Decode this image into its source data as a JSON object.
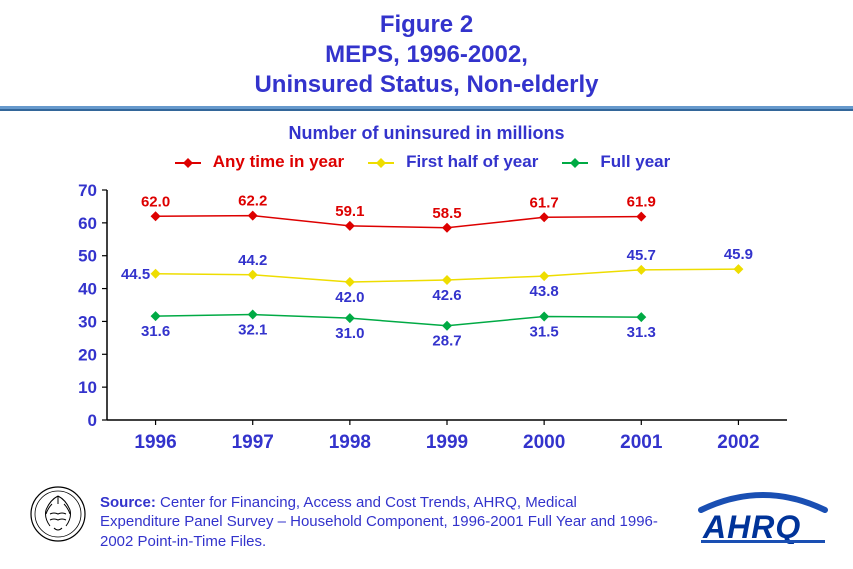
{
  "title": {
    "line1": "Figure 2",
    "line2": "MEPS, 1996-2002,",
    "line3": "Uninsured Status, Non-elderly",
    "color": "#3333cc",
    "fontsize": 24
  },
  "subtitle": {
    "text": "Number of uninsured in millions",
    "color": "#3333cc",
    "fontsize": 18
  },
  "rule_colors": {
    "top": "#6699cc",
    "bottom": "#336699"
  },
  "chart": {
    "type": "line",
    "background_color": "#ffffff",
    "x_categories": [
      "1996",
      "1997",
      "1998",
      "1999",
      "2000",
      "2001",
      "2002"
    ],
    "ylim": [
      0,
      70
    ],
    "ytick_step": 10,
    "axis_color": "#000000",
    "tick_label_color": "#3333cc",
    "tick_fontsize": 17,
    "x_tick_fontsize": 19,
    "data_label_fontsize": 15,
    "marker_style": "diamond",
    "marker_size": 5,
    "line_width": 1.5,
    "series": [
      {
        "name": "Any time in year",
        "color": "#dd0000",
        "values": [
          62.0,
          62.2,
          59.1,
          58.5,
          61.7,
          61.9,
          null
        ],
        "label_position": "above"
      },
      {
        "name": "First half of year",
        "color": "#eedd00",
        "label_color": "#3333cc",
        "values": [
          44.5,
          44.2,
          42.0,
          42.6,
          43.8,
          45.7,
          45.9
        ],
        "label_position": "mixed",
        "label_offsets": [
          "left-mid",
          "above",
          "below",
          "below",
          "below",
          "above",
          "above"
        ]
      },
      {
        "name": "Full year",
        "color": "#00aa44",
        "label_color": "#3333cc",
        "values": [
          31.6,
          32.1,
          31.0,
          28.7,
          31.5,
          31.3,
          null
        ],
        "label_position": "below"
      }
    ]
  },
  "legend": {
    "fontsize": 17,
    "marker": "diamond",
    "items": [
      {
        "label": "Any time in year",
        "color": "#dd0000",
        "text_color": "#dd0000"
      },
      {
        "label": "First half of year",
        "color": "#eedd00",
        "text_color": "#3333cc"
      },
      {
        "label": "Full year",
        "color": "#00aa44",
        "text_color": "#3333cc"
      }
    ]
  },
  "source": {
    "label": "Source:",
    "text": " Center for Financing, Access and Cost Trends, AHRQ, Medical Expenditure Panel Survey – Household Component, 1996-2001 Full Year and 1996-2002 Point-in-Time Files.",
    "color": "#3333cc",
    "fontsize": 15
  },
  "logos": {
    "hhs": {
      "name": "hhs-eagle-logo",
      "color": "#000000"
    },
    "ahrq": {
      "name": "ahrq-logo",
      "text": "AHRQ",
      "color": "#003399",
      "accent": "#1a4fb3"
    }
  }
}
